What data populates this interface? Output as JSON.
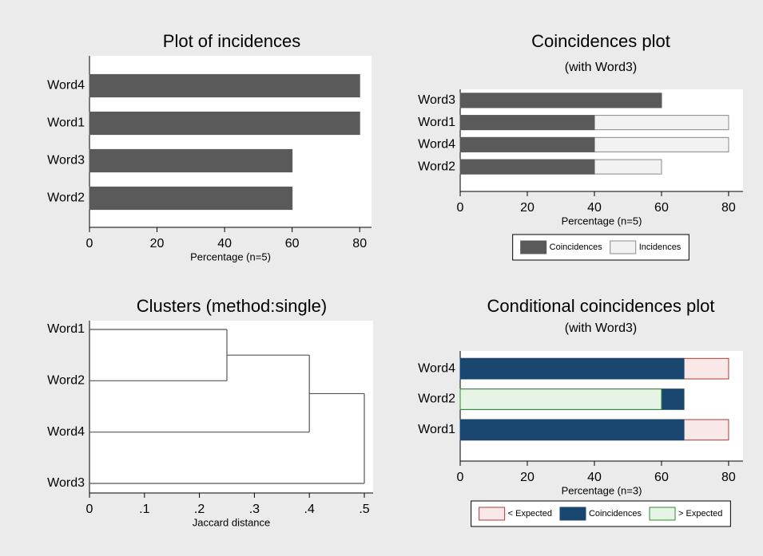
{
  "chart_data": [
    {
      "type": "bar",
      "orientation": "horizontal",
      "title": "Plot of incidences",
      "categories": [
        "Word4",
        "Word1",
        "Word3",
        "Word2"
      ],
      "values": [
        80,
        80,
        60,
        60
      ],
      "color": "#5a5a5a",
      "xlim": [
        0,
        83.5
      ],
      "xticks": [
        0,
        20,
        40,
        60,
        80
      ],
      "xlabel": "Percentage (n=5)"
    },
    {
      "type": "bar",
      "orientation": "horizontal",
      "barmode": "overlay",
      "title": "Coincidences plot",
      "subtitle": "(with Word3)",
      "categories": [
        "Word3",
        "Word1",
        "Word4",
        "Word2"
      ],
      "series": [
        {
          "name": "Incidences",
          "color": "#f2f2f2",
          "edgecolor": "#8a8a8a",
          "values": [
            60,
            80,
            80,
            60
          ]
        },
        {
          "name": "Coincidences",
          "color": "#5a5a5a",
          "edgecolor": "#5a5a5a",
          "values": [
            60,
            40,
            40,
            40
          ]
        }
      ],
      "legend_order": [
        1,
        0
      ],
      "legend": "bottom",
      "xlim": [
        0,
        84.3
      ],
      "xticks": [
        0,
        20,
        40,
        60,
        80
      ],
      "xlabel": "Percentage (n=5)"
    },
    {
      "type": "dendrogram",
      "title": "Clusters (method:single)",
      "leaves": [
        "Word1",
        "Word2",
        "Word4",
        "Word3"
      ],
      "merge_heights": [
        0.25,
        0.4,
        0.5
      ],
      "xlim": [
        0,
        0.516
      ],
      "xticks": [
        0,
        {
          "value": 0.1,
          "label": ".1"
        },
        {
          "value": 0.2,
          "label": ".2"
        },
        {
          "value": 0.3,
          "label": ".3"
        },
        {
          "value": 0.4,
          "label": ".4"
        },
        {
          "value": 0.5,
          "label": ".5"
        }
      ],
      "xlabel": "Jaccard distance"
    },
    {
      "type": "bar",
      "orientation": "horizontal",
      "barmode": "overlay",
      "title": "Conditional coincidences plot",
      "subtitle": "(with Word3)",
      "categories": [
        "Word4",
        "Word2",
        "Word1"
      ],
      "series": [
        {
          "name": "< Expected",
          "color": "#f8e8e8",
          "edgecolor": "#b03a3a",
          "values": [
            80,
            null,
            80
          ]
        },
        {
          "name": "Coincidences",
          "color": "#1a476f",
          "edgecolor": "#1a476f",
          "values": [
            66.7,
            66.7,
            66.7
          ]
        },
        {
          "name": "> Expected",
          "color": "#e6f4e6",
          "edgecolor": "#2e8b2e",
          "values": [
            null,
            60,
            null
          ]
        }
      ],
      "legend_order": [
        0,
        1,
        2
      ],
      "legend": "bottom",
      "xlim": [
        0,
        84.3
      ],
      "xticks": [
        0,
        20,
        40,
        60,
        80
      ],
      "xlabel": "Percentage (n=3)"
    }
  ]
}
